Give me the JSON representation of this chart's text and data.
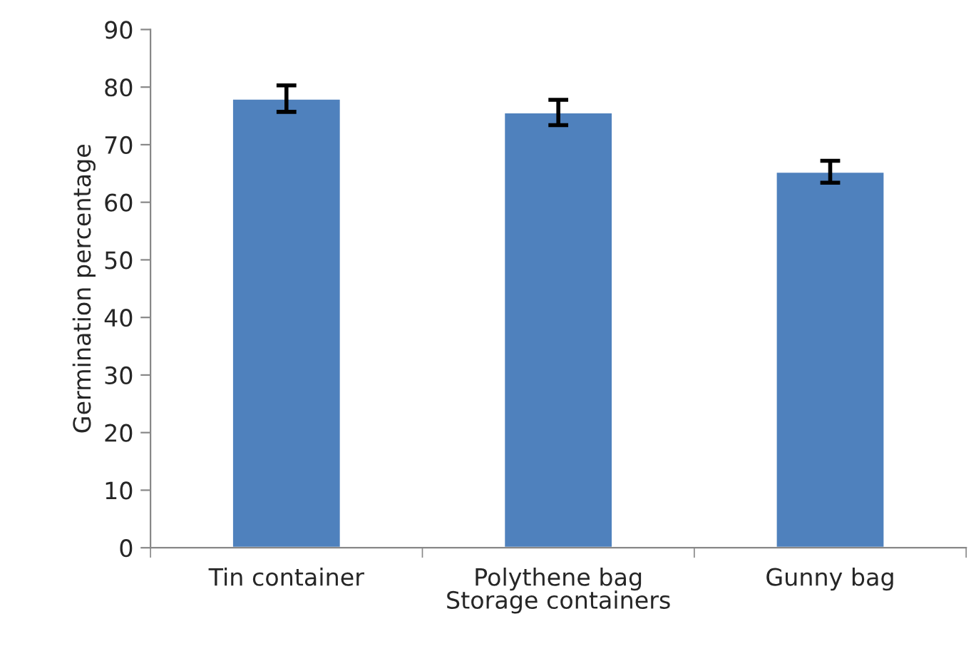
{
  "chart_data": {
    "type": "bar",
    "xlabel": "Storage containers",
    "ylabel": "Germination percentage",
    "categories": [
      "Tin container",
      "Polythene bag",
      "Gunny bag"
    ],
    "values": [
      78,
      75.6,
      65.3
    ],
    "errors": [
      2.3,
      2.2,
      1.9
    ],
    "color": "#4f81bd",
    "ylim": [
      0,
      90
    ],
    "yticks": [
      0,
      10,
      20,
      30,
      40,
      50,
      60,
      70,
      80,
      90
    ],
    "grid": false
  }
}
